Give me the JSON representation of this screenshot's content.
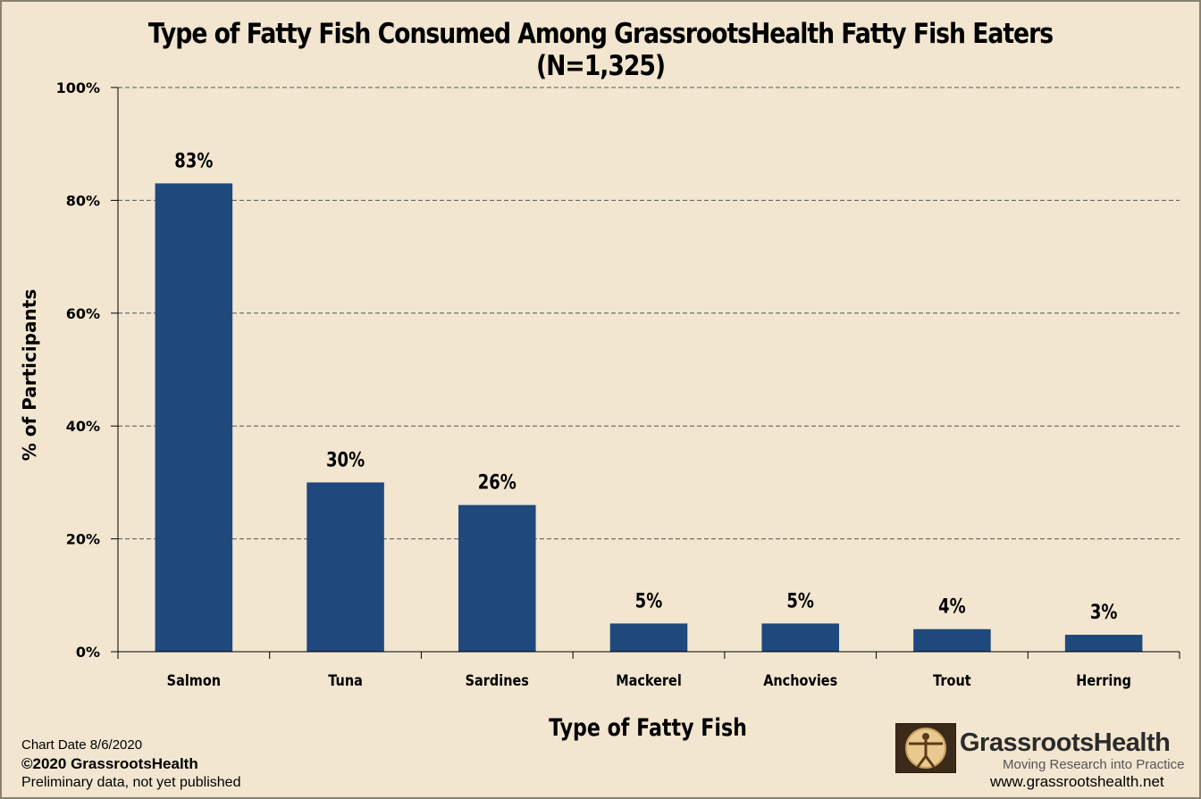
{
  "chart_data": {
    "type": "bar",
    "title": "Type of Fatty Fish Consumed Among GrassrootsHealth Fatty Fish Eaters (N=1,325)",
    "xlabel": "Type of Fatty Fish",
    "ylabel": "% of Participants",
    "categories": [
      "Salmon",
      "Tuna",
      "Sardines",
      "Mackerel",
      "Anchovies",
      "Trout",
      "Herring"
    ],
    "values": [
      83,
      30,
      26,
      5,
      5,
      4,
      3
    ],
    "data_labels": [
      "83%",
      "30%",
      "26%",
      "5%",
      "5%",
      "4%",
      "3%"
    ],
    "ylim": [
      0,
      100
    ],
    "yticks": [
      0,
      20,
      40,
      60,
      80,
      100
    ],
    "ytick_labels": [
      "0%",
      "20%",
      "40%",
      "60%",
      "80%",
      "100%"
    ],
    "grid": true,
    "legend": "none",
    "bar_color": "#1f497d"
  },
  "footer": {
    "chart_date": "Chart Date 8/6/2020",
    "copyright": "©2020 GrassrootsHealth",
    "note": "Preliminary data, not yet published"
  },
  "logo": {
    "name": "GrassrootsHealth",
    "tagline": "Moving Research into Practice",
    "website": "www.grassrootshealth.net"
  },
  "colors": {
    "background": "#f2e6d0",
    "bar": "#1f497d"
  }
}
